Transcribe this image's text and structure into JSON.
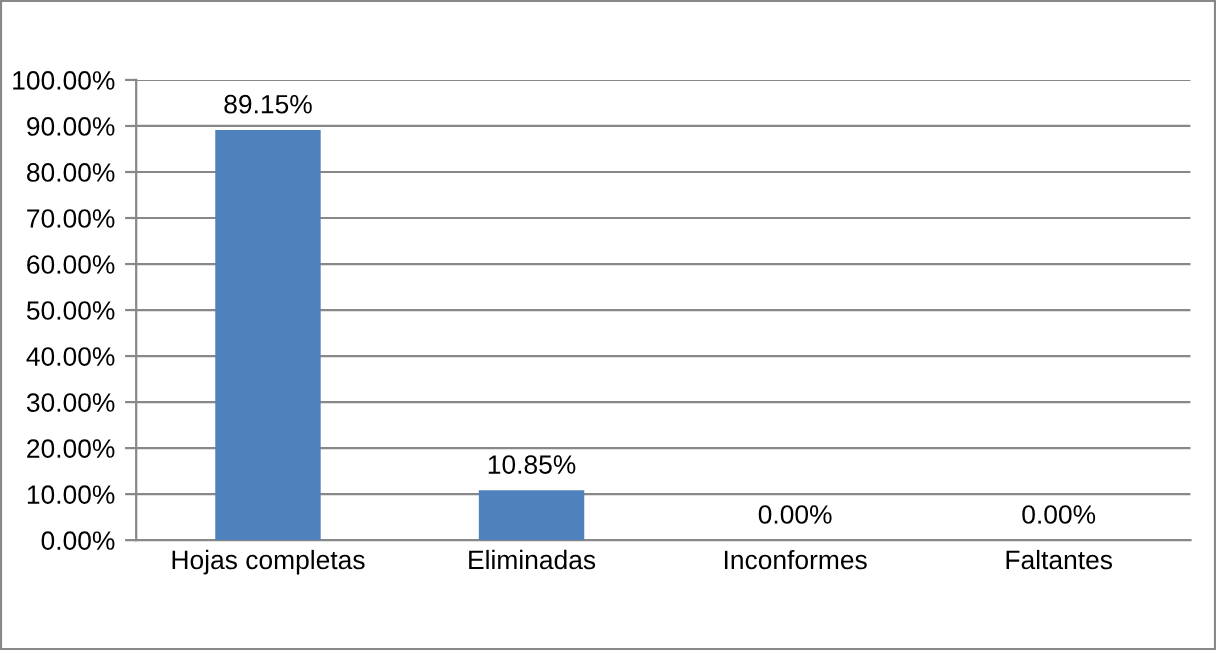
{
  "chart_data": {
    "type": "bar",
    "categories": [
      "Hojas completas",
      "Eliminadas",
      "Inconformes",
      "Faltantes"
    ],
    "values": [
      89.15,
      10.85,
      0,
      0
    ],
    "value_labels": [
      "89.15%",
      "10.85%",
      "0.00%",
      "0.00%"
    ],
    "color": "#4f81bd",
    "ylim": [
      0,
      100
    ],
    "yticks": [
      {
        "value": 0,
        "label": "0.00%"
      },
      {
        "value": 10,
        "label": "10.00%"
      },
      {
        "value": 20,
        "label": "20.00%"
      },
      {
        "value": 30,
        "label": "30.00%"
      },
      {
        "value": 40,
        "label": "40.00%"
      },
      {
        "value": 50,
        "label": "50.00%"
      },
      {
        "value": 60,
        "label": "60.00%"
      },
      {
        "value": 70,
        "label": "70.00%"
      },
      {
        "value": 80,
        "label": "80.00%"
      },
      {
        "value": 90,
        "label": "90.00%"
      },
      {
        "value": 100,
        "label": "100.00%"
      }
    ],
    "grid": "y",
    "legend": false
  }
}
